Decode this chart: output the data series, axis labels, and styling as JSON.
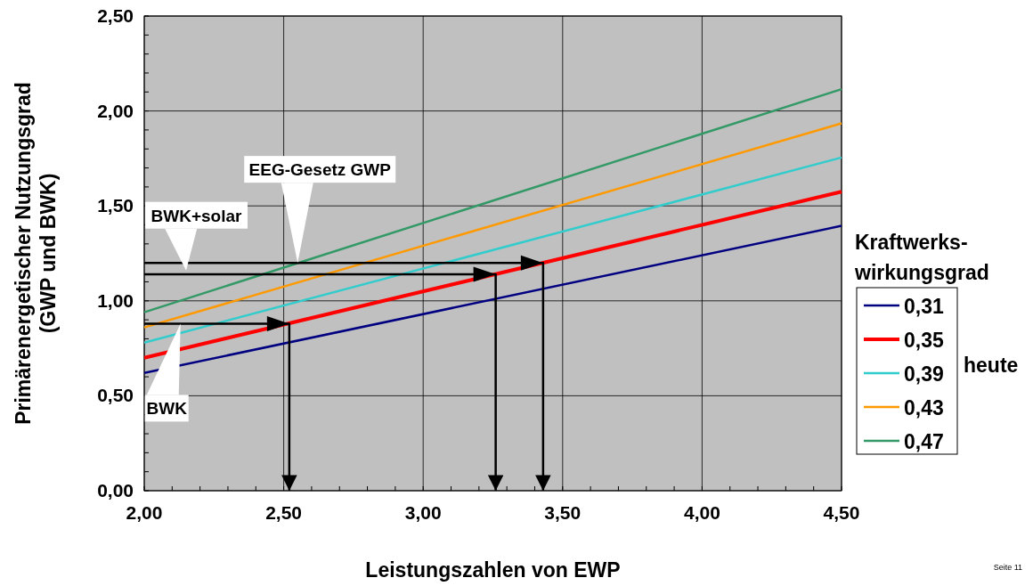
{
  "chart_data": {
    "type": "line",
    "xlabel": "Leistungszahlen von EWP",
    "ylabel": "Primärenergetischer Nutzungsgrad\n(GWP und BWK)",
    "legend_title": "Kraftwerks-\nwirkungsgrad",
    "legend": "right",
    "grid": true,
    "marker": "none",
    "line_style": "solid",
    "x": [
      2,
      4.5
    ],
    "series": [
      {
        "name": "0,31",
        "color": "#000080",
        "values": [
          0.62,
          1.395
        ]
      },
      {
        "name": "0,35",
        "color": "#ff0000",
        "values": [
          0.7,
          1.575
        ]
      },
      {
        "name": "0,39",
        "color": "#33cccc",
        "values": [
          0.78,
          1.755
        ]
      },
      {
        "name": "0,43",
        "color": "#ff9900",
        "values": [
          0.86,
          1.935
        ]
      },
      {
        "name": "0,47",
        "color": "#339966",
        "values": [
          0.94,
          2.115
        ]
      },
      {
        "color": "#000000",
        "x": [
          2,
          2.52,
          2.52
        ],
        "values": [
          0.88,
          0.88,
          0
        ]
      },
      {
        "color": "#000000",
        "x": [
          2,
          3.26,
          3.26
        ],
        "values": [
          1.14,
          1.14,
          0
        ]
      },
      {
        "color": "#000000",
        "x": [
          2,
          3.43,
          3.43
        ],
        "values": [
          1.2,
          1.2,
          0
        ]
      }
    ],
    "xlim": [
      2,
      4.5
    ],
    "ylim": [
      0,
      2.5
    ],
    "xticks": [
      {
        "value": 2,
        "label": "2,00"
      },
      {
        "value": 2.1,
        "label": null
      },
      {
        "value": 2.2,
        "label": null
      },
      {
        "value": 2.3,
        "label": null
      },
      {
        "value": 2.4,
        "label": null
      },
      {
        "value": 2.5,
        "label": "2,50"
      },
      {
        "value": 2.6,
        "label": null
      },
      {
        "value": 2.7,
        "label": null
      },
      {
        "value": 2.8,
        "label": null
      },
      {
        "value": 2.9,
        "label": null
      },
      {
        "value": 3,
        "label": "3,00"
      },
      {
        "value": 3.1,
        "label": null
      },
      {
        "value": 3.2,
        "label": null
      },
      {
        "value": 3.3,
        "label": null
      },
      {
        "value": 3.4,
        "label": null
      },
      {
        "value": 3.5,
        "label": "3,50"
      },
      {
        "value": 3.6,
        "label": null
      },
      {
        "value": 3.7,
        "label": null
      },
      {
        "value": 3.8,
        "label": null
      },
      {
        "value": 3.9,
        "label": null
      },
      {
        "value": 4,
        "label": "4,00"
      },
      {
        "value": 4.1,
        "label": null
      },
      {
        "value": 4.2,
        "label": null
      },
      {
        "value": 4.3,
        "label": null
      },
      {
        "value": 4.4,
        "label": null
      },
      {
        "value": 4.5,
        "label": "4,50"
      }
    ],
    "yticks": [
      {
        "value": 0,
        "label": "0,00"
      },
      {
        "value": 0.1,
        "label": null
      },
      {
        "value": 0.2,
        "label": null
      },
      {
        "value": 0.3,
        "label": null
      },
      {
        "value": 0.4,
        "label": null
      },
      {
        "value": 0.5,
        "label": "0,50"
      },
      {
        "value": 0.6,
        "label": null
      },
      {
        "value": 0.7,
        "label": null
      },
      {
        "value": 0.8,
        "label": null
      },
      {
        "value": 0.9,
        "label": null
      },
      {
        "value": 1,
        "label": "1,00"
      },
      {
        "value": 1.1,
        "label": null
      },
      {
        "value": 1.2,
        "label": null
      },
      {
        "value": 1.3,
        "label": null
      },
      {
        "value": 1.4,
        "label": null
      },
      {
        "value": 1.5,
        "label": "1,50"
      },
      {
        "value": 1.6,
        "label": null
      },
      {
        "value": 1.7,
        "label": null
      },
      {
        "value": 1.8,
        "label": null
      },
      {
        "value": 1.9,
        "label": null
      },
      {
        "value": 2,
        "label": "2,00"
      },
      {
        "value": 2.1,
        "label": null
      },
      {
        "value": 2.2,
        "label": null
      },
      {
        "value": 2.3,
        "label": null
      },
      {
        "value": 2.4,
        "label": null
      },
      {
        "value": 2.5,
        "label": "2,50"
      }
    ],
    "annotations": [
      {
        "text": "BWK+solar",
        "x": 2.15,
        "y": 1.16
      },
      {
        "text": "EEG-Gesetz GWP",
        "x": 2.55,
        "y": 1.2
      },
      {
        "text": "BWK",
        "x": 2.13,
        "y": 0.88
      },
      "heute",
      "Seite 11"
    ]
  }
}
